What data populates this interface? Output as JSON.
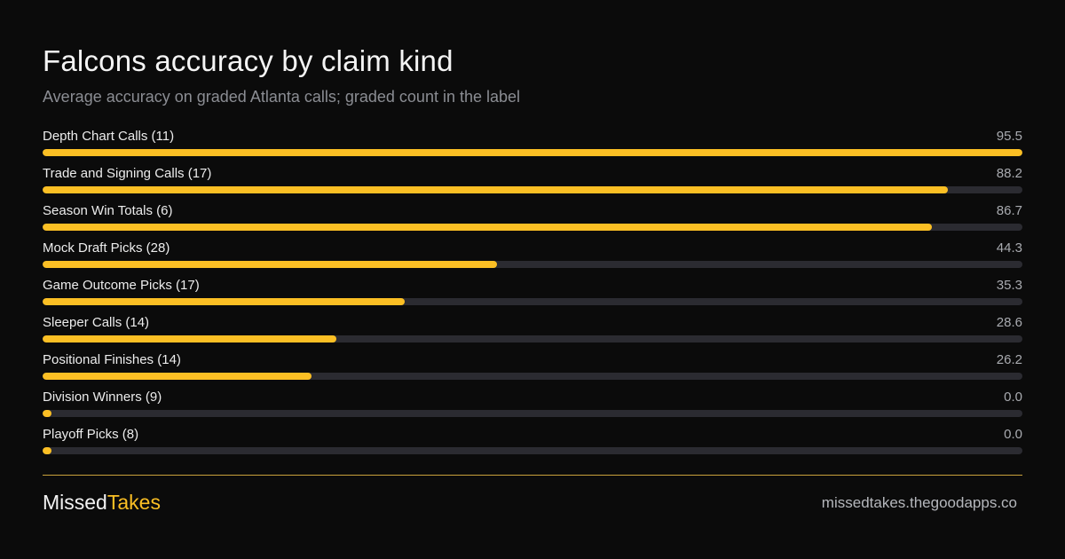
{
  "header": {
    "title": "Falcons accuracy by claim kind",
    "subtitle": "Average accuracy on graded Atlanta calls; graded count in the label"
  },
  "colors": {
    "background": "#0b0b0b",
    "bar_fill": "#fbbf24",
    "bar_track": "#2b2b31",
    "brand_accent": "#fbbf24"
  },
  "chart_data": {
    "type": "bar",
    "orientation": "horizontal",
    "title": "Falcons accuracy by claim kind",
    "subtitle": "Average accuracy on graded Atlanta calls; graded count in the label",
    "categories": [
      "Depth Chart Calls (11)",
      "Trade and Signing Calls (17)",
      "Season Win Totals (6)",
      "Mock Draft Picks (28)",
      "Game Outcome Picks (17)",
      "Sleeper Calls (14)",
      "Positional Finishes (14)",
      "Division Winners (9)",
      "Playoff Picks (8)"
    ],
    "values": [
      95.5,
      88.2,
      86.7,
      44.3,
      35.3,
      28.6,
      26.2,
      0.0,
      0.0
    ],
    "value_labels": [
      "95.5",
      "88.2",
      "86.7",
      "44.3",
      "35.3",
      "28.6",
      "26.2",
      "0.0",
      "0.0"
    ],
    "xlim": [
      0,
      95.5
    ],
    "grid": false,
    "legend": "none"
  },
  "footer": {
    "brand_part1": "Missed",
    "brand_part2": "Takes",
    "site": "missedtakes.thegoodapps.co"
  }
}
